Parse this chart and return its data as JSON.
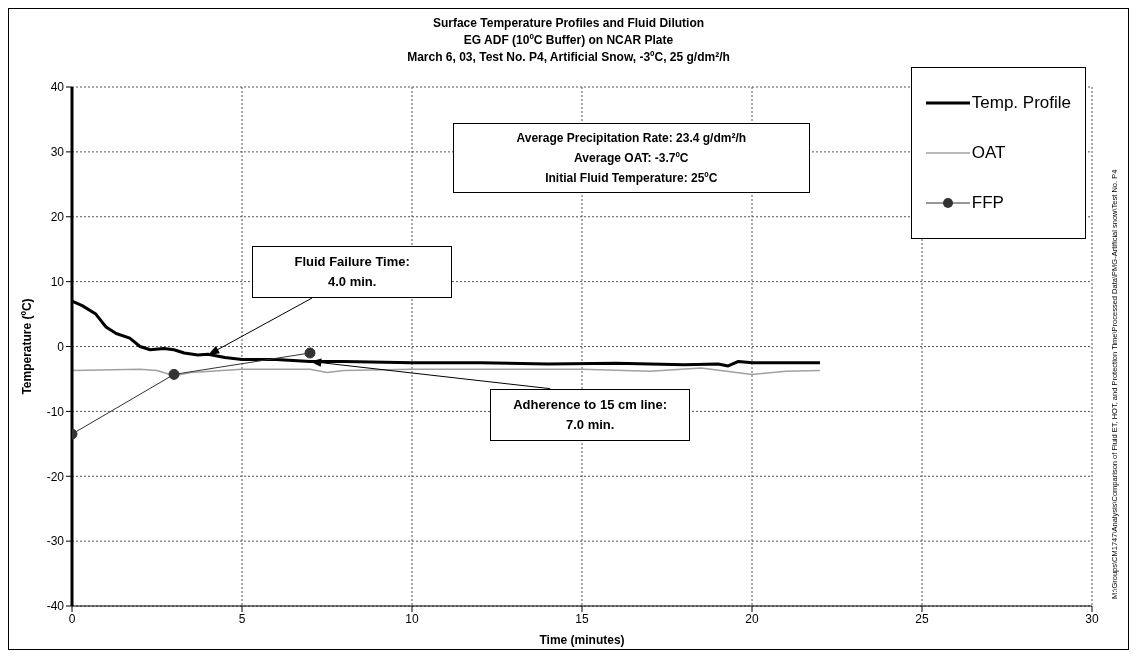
{
  "chart_data": {
    "type": "line",
    "title": "Surface Temperature Profiles and Fluid Dilution",
    "subtitle": "EG ADF (10ºC Buffer) on NCAR Plate\nMarch 6, 03, Test No. P4, Artificial Snow, -3ºC, 25 g/dm²/h",
    "xlabel": "Time (minutes)",
    "ylabel": "Temperature (ºC)",
    "xlim": [
      0,
      30
    ],
    "xticks": [
      0,
      5,
      10,
      15,
      20,
      25,
      30
    ],
    "ylim": [
      -40,
      40
    ],
    "yticks": [
      -40,
      -30,
      -20,
      -10,
      0,
      10,
      20,
      30,
      40
    ],
    "grid": true,
    "legend": "top right",
    "series": [
      {
        "name": "Temp. Profile",
        "color": "#000000",
        "marker": "none",
        "x": [
          0,
          0.3,
          0.7,
          1,
          1.3,
          1.7,
          2,
          2.3,
          2.7,
          3,
          3.3,
          3.7,
          4,
          4.5,
          5,
          6,
          7,
          8,
          10,
          12,
          14,
          16,
          18,
          19,
          19.3,
          19.6,
          20,
          22
        ],
        "values": [
          7,
          6.3,
          5,
          3,
          2,
          1.3,
          0,
          -0.5,
          -0.3,
          -0.5,
          -1,
          -1.3,
          -1.2,
          -1.7,
          -2,
          -2,
          -2.3,
          -2.3,
          -2.5,
          -2.5,
          -2.7,
          -2.6,
          -2.8,
          -2.7,
          -3,
          -2.3,
          -2.5,
          -2.5
        ]
      },
      {
        "name": "OAT",
        "color": "#a0a0a0",
        "marker": "none",
        "x": [
          0,
          2,
          2.5,
          3,
          3.5,
          5,
          7,
          7.5,
          8,
          10,
          15,
          17,
          18.5,
          20,
          21,
          22
        ],
        "values": [
          -3.7,
          -3.5,
          -3.7,
          -4.5,
          -4,
          -3.5,
          -3.5,
          -4,
          -3.7,
          -3.5,
          -3.5,
          -3.8,
          -3.3,
          -4.3,
          -3.8,
          -3.7
        ]
      },
      {
        "name": "FFP",
        "color": "#333333",
        "marker": "circle",
        "x": [
          0,
          3,
          7
        ],
        "values": [
          -13.5,
          -4.3,
          -1
        ]
      }
    ],
    "annotations": [
      "Average Precipitation Rate:  23.4 g/dm²/h\nAverage OAT: -3.7ºC\nInitial Fluid Temperature: 25ºC",
      {
        "text": "Fluid Failure Time:\n4.0 min.",
        "x": 4,
        "y": -1.3
      },
      {
        "text": "Adherence to 15 cm line:\n7.0 min.",
        "x": 7,
        "y": -2.3
      },
      "M:\\Groups\\CM1747\\Analysis\\Comparison of Fluid ET, HOT, and Protection Time\\Processed Data\\PMG-Artificial snow\\Test No. P4"
    ]
  }
}
